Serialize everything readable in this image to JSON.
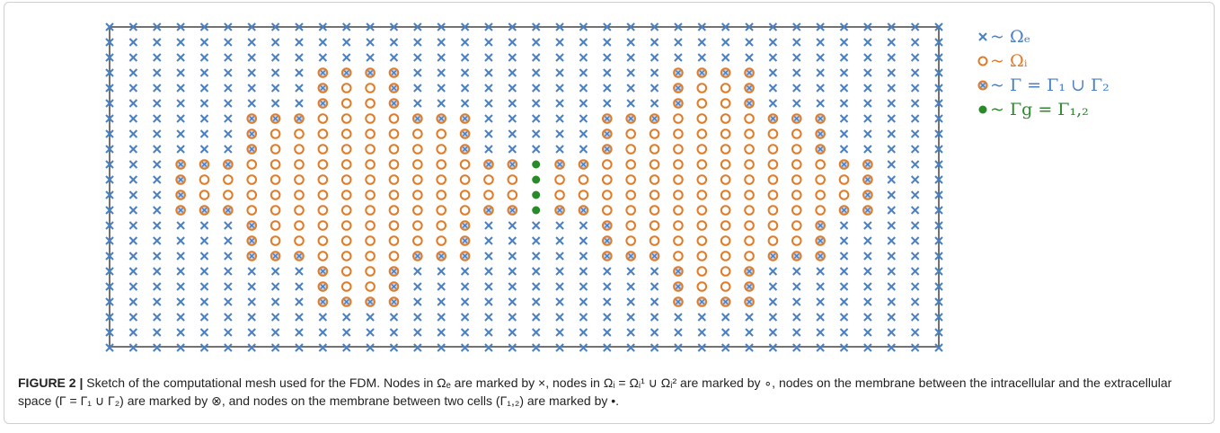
{
  "figure": {
    "legend": [
      "~ Ωₑ",
      "~ Ωᵢ",
      "~ Γ = Γ₁ ∪ Γ₂",
      "~ Γg = Γ₁,₂"
    ],
    "caption_label": "FIGURE 2 |",
    "caption_text": "Sketch of the computational mesh used for the FDM. Nodes in Ωₑ are marked by ×, nodes in Ωᵢ = Ωᵢ¹ ∪ Ωᵢ² are marked by ∘, nodes on the membrane between the intracellular and the extracellular space (Γ = Γ₁ ∪ Γ₂) are marked by ⊗, and nodes on the membrane between two cells (Γ₁,₂) are marked by •."
  }
}
